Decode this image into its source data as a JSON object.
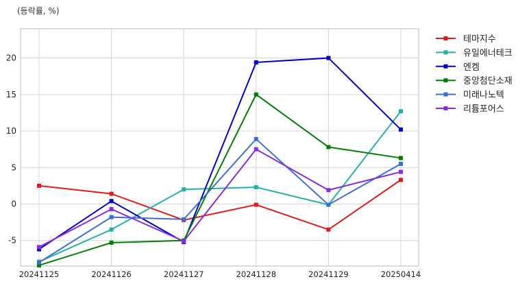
{
  "chart_data": {
    "type": "line",
    "unit_label": "(등락률, %)",
    "categories": [
      "20241125",
      "20241126",
      "20241127",
      "20241128",
      "20241129",
      "20250414"
    ],
    "ylim": [
      -8.5,
      24
    ],
    "yticks": [
      -5,
      0,
      5,
      10,
      15,
      20
    ],
    "grid": true,
    "legend_position": "right",
    "series": [
      {
        "name": "테마지수",
        "color": "#e31a1c",
        "values": [
          2.5,
          1.4,
          -2.2,
          -0.1,
          -3.5,
          3.3
        ]
      },
      {
        "name": "유일에너테크",
        "color": "#20b2aa",
        "values": [
          -7.9,
          -3.5,
          2.0,
          2.3,
          -0.1,
          12.7
        ]
      },
      {
        "name": "엔켐",
        "color": "#0000cd",
        "values": [
          -6.2,
          0.4,
          -5.2,
          19.4,
          20.0,
          10.2
        ]
      },
      {
        "name": "중앙첨단소재",
        "color": "#008000",
        "values": [
          -8.4,
          -5.3,
          -5.0,
          15.0,
          7.8,
          6.3
        ]
      },
      {
        "name": "미래나노텍",
        "color": "#3a6fd8",
        "values": [
          -8.0,
          -1.8,
          -2.1,
          8.9,
          -0.1,
          5.5
        ]
      },
      {
        "name": "리튬포어스",
        "color": "#8a2be2",
        "values": [
          -5.9,
          -0.7,
          -5.1,
          7.5,
          1.9,
          4.4
        ]
      }
    ]
  }
}
